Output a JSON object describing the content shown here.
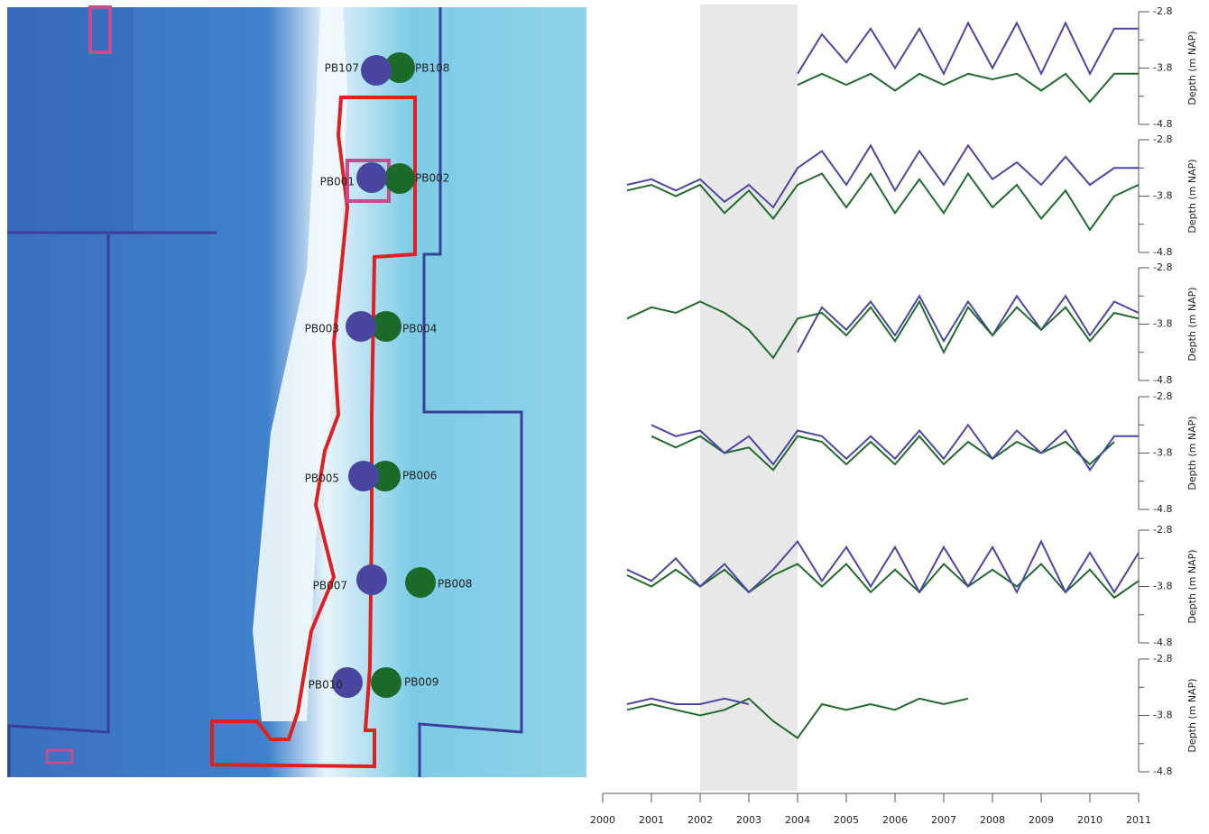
{
  "map": {
    "wells": [
      {
        "label": "PB107"
      },
      {
        "label": "PB108"
      },
      {
        "label": "PB001"
      },
      {
        "label": "PB002"
      },
      {
        "label": "PB003"
      },
      {
        "label": "PB004"
      },
      {
        "label": "PB005"
      },
      {
        "label": "PB006"
      },
      {
        "label": "PB007"
      },
      {
        "label": "PB008"
      },
      {
        "label": "PB010"
      },
      {
        "label": "PB009"
      }
    ]
  },
  "highlight": [
    2002,
    2004
  ],
  "chart_data": [
    {
      "type": "line",
      "ylabel": "Depth (m NAP)",
      "xlim": [
        2000,
        2011
      ],
      "ylim": [
        -4.8,
        -2.8
      ],
      "yticks": [
        -2.8,
        -3.8,
        -4.8
      ],
      "y_minor_ticks": [
        -3.3,
        -4.3
      ],
      "x": [
        2000.5,
        2001,
        2001.5,
        2002,
        2002.5,
        2003,
        2003.5,
        2004,
        2004.5,
        2005,
        2005.5,
        2006,
        2006.5,
        2007,
        2007.5,
        2008,
        2008.5,
        2009,
        2009.5,
        2010,
        2010.5,
        2011
      ],
      "series": [
        {
          "color": "#4a46a8",
          "values": [
            null,
            null,
            null,
            null,
            null,
            null,
            null,
            -3.9,
            -3.2,
            -3.7,
            -3.1,
            -3.8,
            -3.1,
            -3.9,
            -3.0,
            -3.8,
            -3.0,
            -3.9,
            -3.0,
            -3.9,
            -3.1,
            -3.1
          ]
        },
        {
          "color": "#1f6b2c",
          "values": [
            null,
            null,
            null,
            null,
            null,
            null,
            null,
            -4.1,
            -3.9,
            -4.1,
            -3.9,
            -4.2,
            -3.9,
            -4.1,
            -3.9,
            -4.0,
            -3.9,
            -4.2,
            -3.9,
            -4.4,
            -3.9,
            -3.9
          ]
        }
      ]
    },
    {
      "type": "line",
      "ylabel": "Depth (m NAP)",
      "xlim": [
        2000,
        2011
      ],
      "ylim": [
        -4.8,
        -2.8
      ],
      "yticks": [
        -2.8,
        -3.8,
        -4.8
      ],
      "y_minor_ticks": [
        -3.3,
        -4.3
      ],
      "x": [
        2000.5,
        2001,
        2001.5,
        2002,
        2002.5,
        2003,
        2003.5,
        2004,
        2004.5,
        2005,
        2005.5,
        2006,
        2006.5,
        2007,
        2007.5,
        2008,
        2008.5,
        2009,
        2009.5,
        2010,
        2010.5,
        2011
      ],
      "series": [
        {
          "color": "#4a46a8",
          "values": [
            -3.6,
            -3.5,
            -3.7,
            -3.5,
            -3.9,
            -3.6,
            -4.0,
            -3.3,
            -3.0,
            -3.6,
            -2.9,
            -3.7,
            -3.0,
            -3.6,
            -2.9,
            -3.5,
            -3.2,
            -3.6,
            -3.1,
            -3.6,
            -3.3,
            -3.3
          ]
        },
        {
          "color": "#1f6b2c",
          "values": [
            -3.7,
            -3.6,
            -3.8,
            -3.6,
            -4.1,
            -3.7,
            -4.2,
            -3.6,
            -3.4,
            -4.0,
            -3.4,
            -4.1,
            -3.5,
            -4.1,
            -3.4,
            -4.0,
            -3.6,
            -4.2,
            -3.7,
            -4.4,
            -3.8,
            -3.6
          ]
        }
      ]
    },
    {
      "type": "line",
      "ylabel": "Depth (m NAP)",
      "xlim": [
        2000,
        2011
      ],
      "ylim": [
        -4.8,
        -2.8
      ],
      "yticks": [
        -2.8,
        -3.8,
        -4.8
      ],
      "y_minor_ticks": [
        -3.3,
        -4.3
      ],
      "x": [
        2000.5,
        2001,
        2001.5,
        2002,
        2002.5,
        2003,
        2003.5,
        2004,
        2004.5,
        2005,
        2005.5,
        2006,
        2006.5,
        2007,
        2007.5,
        2008,
        2008.5,
        2009,
        2009.5,
        2010,
        2010.5,
        2011
      ],
      "series": [
        {
          "color": "#4a46a8",
          "values": [
            null,
            null,
            null,
            null,
            null,
            null,
            null,
            -4.3,
            -3.5,
            -3.9,
            -3.4,
            -4.0,
            -3.3,
            -4.1,
            -3.4,
            -4.0,
            -3.3,
            -3.9,
            -3.3,
            -4.0,
            -3.4,
            -3.6
          ]
        },
        {
          "color": "#1f6b2c",
          "values": [
            -3.7,
            -3.5,
            -3.6,
            -3.4,
            -3.6,
            -3.9,
            -4.4,
            -3.7,
            -3.6,
            -4.0,
            -3.5,
            -4.1,
            -3.4,
            -4.3,
            -3.5,
            -4.0,
            -3.5,
            -3.9,
            -3.5,
            -4.1,
            -3.6,
            -3.7
          ]
        }
      ]
    },
    {
      "type": "line",
      "ylabel": "Depth (m NAP)",
      "xlim": [
        2000,
        2011
      ],
      "ylim": [
        -4.8,
        -2.8
      ],
      "yticks": [
        -2.8,
        -3.8,
        -4.8
      ],
      "y_minor_ticks": [
        -3.3,
        -4.3
      ],
      "x": [
        2000.5,
        2001,
        2001.5,
        2002,
        2002.5,
        2003,
        2003.5,
        2004,
        2004.5,
        2005,
        2005.5,
        2006,
        2006.5,
        2007,
        2007.5,
        2008,
        2008.5,
        2009,
        2009.5,
        2010,
        2010.5,
        2011
      ],
      "series": [
        {
          "color": "#1f6b2c",
          "values": [
            null,
            -3.5,
            -3.7,
            -3.5,
            -3.8,
            -3.7,
            -4.1,
            -3.5,
            -3.6,
            -4.0,
            -3.6,
            -4.0,
            -3.5,
            -4.0,
            -3.6,
            -3.9,
            -3.6,
            -3.8,
            -3.6,
            -4.0,
            -3.6,
            null
          ]
        },
        {
          "color": "#4a46a8",
          "values": [
            null,
            -3.3,
            -3.5,
            -3.4,
            -3.8,
            -3.5,
            -4.0,
            -3.4,
            -3.5,
            -3.9,
            -3.5,
            -3.9,
            -3.4,
            -3.9,
            -3.3,
            -3.9,
            -3.4,
            -3.8,
            -3.4,
            -4.1,
            -3.5,
            -3.5
          ]
        }
      ]
    },
    {
      "type": "line",
      "ylabel": "Depth (m NAP)",
      "xlim": [
        2000,
        2011
      ],
      "ylim": [
        -4.8,
        -2.8
      ],
      "yticks": [
        -2.8,
        -3.8,
        -4.8
      ],
      "y_minor_ticks": [
        -3.3,
        -4.3
      ],
      "x": [
        2000.5,
        2001,
        2001.5,
        2002,
        2002.5,
        2003,
        2003.5,
        2004,
        2004.5,
        2005,
        2005.5,
        2006,
        2006.5,
        2007,
        2007.5,
        2008,
        2008.5,
        2009,
        2009.5,
        2010,
        2010.5,
        2011
      ],
      "series": [
        {
          "color": "#1f6b2c",
          "values": [
            -3.6,
            -3.8,
            -3.5,
            -3.8,
            -3.5,
            -3.9,
            -3.6,
            -3.4,
            -3.8,
            -3.4,
            -3.9,
            -3.5,
            -3.9,
            -3.4,
            -3.8,
            -3.5,
            -3.8,
            -3.4,
            -3.9,
            -3.5,
            -4.0,
            -3.7
          ]
        },
        {
          "color": "#4a46a8",
          "values": [
            -3.5,
            -3.7,
            -3.3,
            -3.8,
            -3.4,
            -3.9,
            -3.5,
            -3.0,
            -3.7,
            -3.1,
            -3.8,
            -3.1,
            -3.9,
            -3.1,
            -3.8,
            -3.1,
            -3.9,
            -3.0,
            -3.9,
            -3.2,
            -3.9,
            -3.2
          ]
        }
      ]
    },
    {
      "type": "line",
      "ylabel": "Depth (m NAP)",
      "xlim": [
        2000,
        2011
      ],
      "ylim": [
        -4.8,
        -2.8
      ],
      "yticks": [
        -2.8,
        -3.8,
        -4.8
      ],
      "y_minor_ticks": [
        -3.3,
        -4.3
      ],
      "xticks": [
        2000,
        2001,
        2002,
        2003,
        2004,
        2005,
        2006,
        2007,
        2008,
        2009,
        2010,
        2011
      ],
      "x": [
        2000.5,
        2001,
        2001.5,
        2002,
        2002.5,
        2003,
        2003.5,
        2004,
        2004.5,
        2005,
        2005.5,
        2006,
        2006.5,
        2007,
        2007.5,
        2008,
        2008.5,
        2009,
        2009.5,
        2010,
        2010.5,
        2011
      ],
      "series": [
        {
          "color": "#1f6b2c",
          "values": [
            -3.7,
            -3.6,
            -3.7,
            -3.8,
            -3.7,
            -3.5,
            -3.9,
            -4.2,
            -3.6,
            -3.7,
            -3.6,
            -3.7,
            -3.5,
            -3.6,
            -3.5,
            null,
            null,
            null,
            null,
            null,
            null,
            null
          ]
        },
        {
          "color": "#4a46a8",
          "values": [
            -3.6,
            -3.5,
            -3.6,
            -3.6,
            -3.5,
            -3.6,
            null,
            null,
            null,
            null,
            null,
            null,
            null,
            null,
            null,
            null,
            null,
            null,
            null,
            null,
            null,
            null
          ]
        }
      ]
    }
  ]
}
